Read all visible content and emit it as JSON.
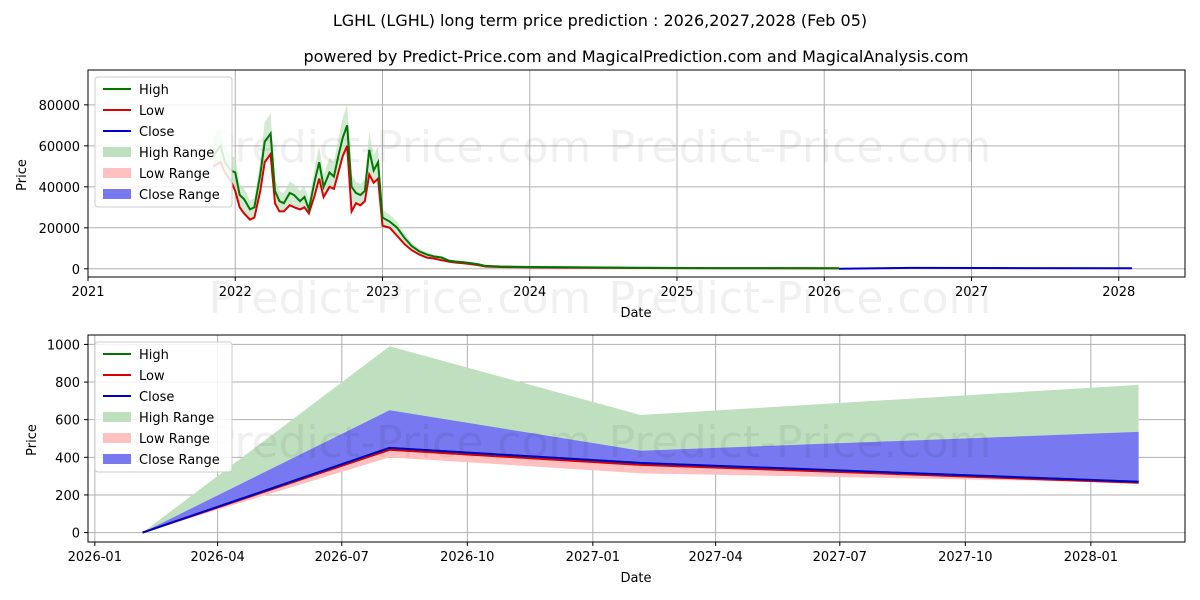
{
  "title": "LGHL (LGHL) long term price prediction : 2026,2027,2028 (Feb 05)",
  "subtitle": "powered by Predict-Price.com and MagicalPrediction.com and MagicalAnalysis.com",
  "watermark": "Predict-Price.com",
  "colors": {
    "high": "#007700",
    "low": "#dd0000",
    "close": "#0000cc",
    "high_range": "#bfe0bf",
    "low_range": "#ffc0c0",
    "close_range": "#7878f0",
    "grid": "#b0b0b0",
    "axis": "#000000"
  },
  "legend": {
    "high": "High",
    "low": "Low",
    "close": "Close",
    "high_range": "High Range",
    "low_range": "Low Range",
    "close_range": "Close Range"
  },
  "chart_data": [
    {
      "type": "line",
      "name": "history",
      "xlabel": "Date",
      "ylabel": "Price",
      "xlim": [
        2021.0,
        2028.45
      ],
      "ylim": [
        -4000,
        97000
      ],
      "x_ticks": [
        2021,
        2022,
        2023,
        2024,
        2025,
        2026,
        2027,
        2028
      ],
      "x_tick_labels": [
        "2021",
        "2022",
        "2023",
        "2024",
        "2025",
        "2026",
        "2027",
        "2028"
      ],
      "y_ticks": [
        0,
        20000,
        40000,
        60000,
        80000
      ],
      "y_tick_labels": [
        "0",
        "20000",
        "40000",
        "60000",
        "80000"
      ],
      "grid": true,
      "legend_position": "top-left",
      "series": [
        {
          "name": "High",
          "x": [
            2021.85,
            2021.9,
            2021.93,
            2021.97,
            2022.0,
            2022.03,
            2022.06,
            2022.1,
            2022.13,
            2022.17,
            2022.2,
            2022.24,
            2022.27,
            2022.3,
            2022.33,
            2022.37,
            2022.4,
            2022.44,
            2022.47,
            2022.5,
            2022.54,
            2022.57,
            2022.6,
            2022.64,
            2022.67,
            2022.7,
            2022.73,
            2022.76,
            2022.79,
            2022.82,
            2022.85,
            2022.88,
            2022.91,
            2022.94,
            2022.97,
            2023.0,
            2023.05,
            2023.1,
            2023.15,
            2023.2,
            2023.25,
            2023.3,
            2023.35,
            2023.4,
            2023.45,
            2023.5,
            2023.55,
            2023.6,
            2023.65,
            2023.7,
            2023.8,
            2023.9,
            2024.0,
            2024.2,
            2024.4,
            2024.6,
            2024.8,
            2025.0,
            2025.3,
            2025.6,
            2025.9,
            2026.1
          ],
          "values": [
            55000,
            60000,
            52000,
            48000,
            47000,
            36000,
            34000,
            29000,
            30000,
            46000,
            62000,
            66000,
            38000,
            33000,
            32000,
            37000,
            36000,
            33000,
            35000,
            29000,
            43000,
            52000,
            40000,
            47000,
            45000,
            55000,
            64000,
            70000,
            40000,
            37000,
            36000,
            38000,
            58000,
            48000,
            52000,
            25000,
            23000,
            20000,
            15000,
            11000,
            8500,
            7000,
            6000,
            5500,
            4000,
            3500,
            3200,
            2800,
            2200,
            1400,
            1100,
            1000,
            900,
            800,
            700,
            600,
            500,
            400,
            350,
            320,
            300,
            290
          ]
        },
        {
          "name": "Low",
          "x": [
            2021.85,
            2021.9,
            2021.93,
            2021.97,
            2022.0,
            2022.03,
            2022.06,
            2022.1,
            2022.13,
            2022.17,
            2022.2,
            2022.24,
            2022.27,
            2022.3,
            2022.33,
            2022.37,
            2022.4,
            2022.44,
            2022.47,
            2022.5,
            2022.54,
            2022.57,
            2022.6,
            2022.64,
            2022.67,
            2022.7,
            2022.73,
            2022.76,
            2022.79,
            2022.82,
            2022.85,
            2022.88,
            2022.91,
            2022.94,
            2022.97,
            2023.0,
            2023.05,
            2023.1,
            2023.15,
            2023.2,
            2023.25,
            2023.3,
            2023.35,
            2023.4,
            2023.45,
            2023.5,
            2023.55,
            2023.6,
            2023.65,
            2023.7,
            2023.8,
            2023.9,
            2024.0,
            2024.2,
            2024.4,
            2024.6,
            2024.8,
            2025.0,
            2025.3,
            2025.6,
            2025.9,
            2026.1
          ],
          "values": [
            50000,
            52000,
            47000,
            43000,
            38000,
            30000,
            27000,
            24000,
            25000,
            38000,
            52000,
            56000,
            32000,
            28000,
            28000,
            31000,
            30000,
            29000,
            30000,
            27000,
            36000,
            44000,
            35000,
            40000,
            39000,
            47000,
            55000,
            60000,
            28000,
            32000,
            31000,
            33000,
            46000,
            42000,
            44000,
            21000,
            20000,
            16000,
            12000,
            9000,
            7000,
            5500,
            5000,
            4200,
            3500,
            3000,
            2700,
            2300,
            1800,
            1100,
            900,
            800,
            700,
            600,
            500,
            450,
            380,
            300,
            260,
            240,
            220,
            200
          ]
        },
        {
          "name": "Close",
          "x": [
            2026.1,
            2026.59,
            2027.09,
            2028.09
          ],
          "values": [
            0,
            450,
            370,
            270
          ]
        }
      ]
    },
    {
      "type": "area",
      "name": "forecast",
      "xlabel": "Date",
      "ylabel": "Price",
      "ylim": [
        -50,
        1050
      ],
      "x_dates": [
        "2026-02-05",
        "2026-08-05",
        "2027-02-05",
        "2028-02-05"
      ],
      "x_ticks": [
        "2026-01-01",
        "2026-04-01",
        "2026-07-01",
        "2026-10-01",
        "2027-01-01",
        "2027-04-01",
        "2027-07-01",
        "2027-10-01",
        "2028-01-01"
      ],
      "x_tick_labels": [
        "2026-01",
        "2026-04",
        "2026-07",
        "2026-10",
        "2027-01",
        "2027-04",
        "2027-07",
        "2027-10",
        "2028-01"
      ],
      "y_ticks": [
        0,
        200,
        400,
        600,
        800,
        1000
      ],
      "y_tick_labels": [
        "0",
        "200",
        "400",
        "600",
        "800",
        "1000"
      ],
      "grid": true,
      "legend_position": "top-left",
      "series": [
        {
          "name": "High Range",
          "upper": [
            0,
            990,
            625,
            785
          ],
          "lower": [
            0,
            450,
            370,
            270
          ]
        },
        {
          "name": "Low Range",
          "upper": [
            0,
            450,
            370,
            270
          ],
          "lower": [
            0,
            400,
            315,
            265
          ]
        },
        {
          "name": "Close Range",
          "upper": [
            0,
            650,
            435,
            535
          ],
          "lower": [
            0,
            450,
            370,
            270
          ]
        },
        {
          "name": "High",
          "values": [
            0,
            450,
            370,
            270
          ]
        },
        {
          "name": "Low",
          "values": [
            0,
            440,
            360,
            265
          ]
        },
        {
          "name": "Close",
          "values": [
            0,
            450,
            370,
            270
          ]
        }
      ]
    }
  ]
}
